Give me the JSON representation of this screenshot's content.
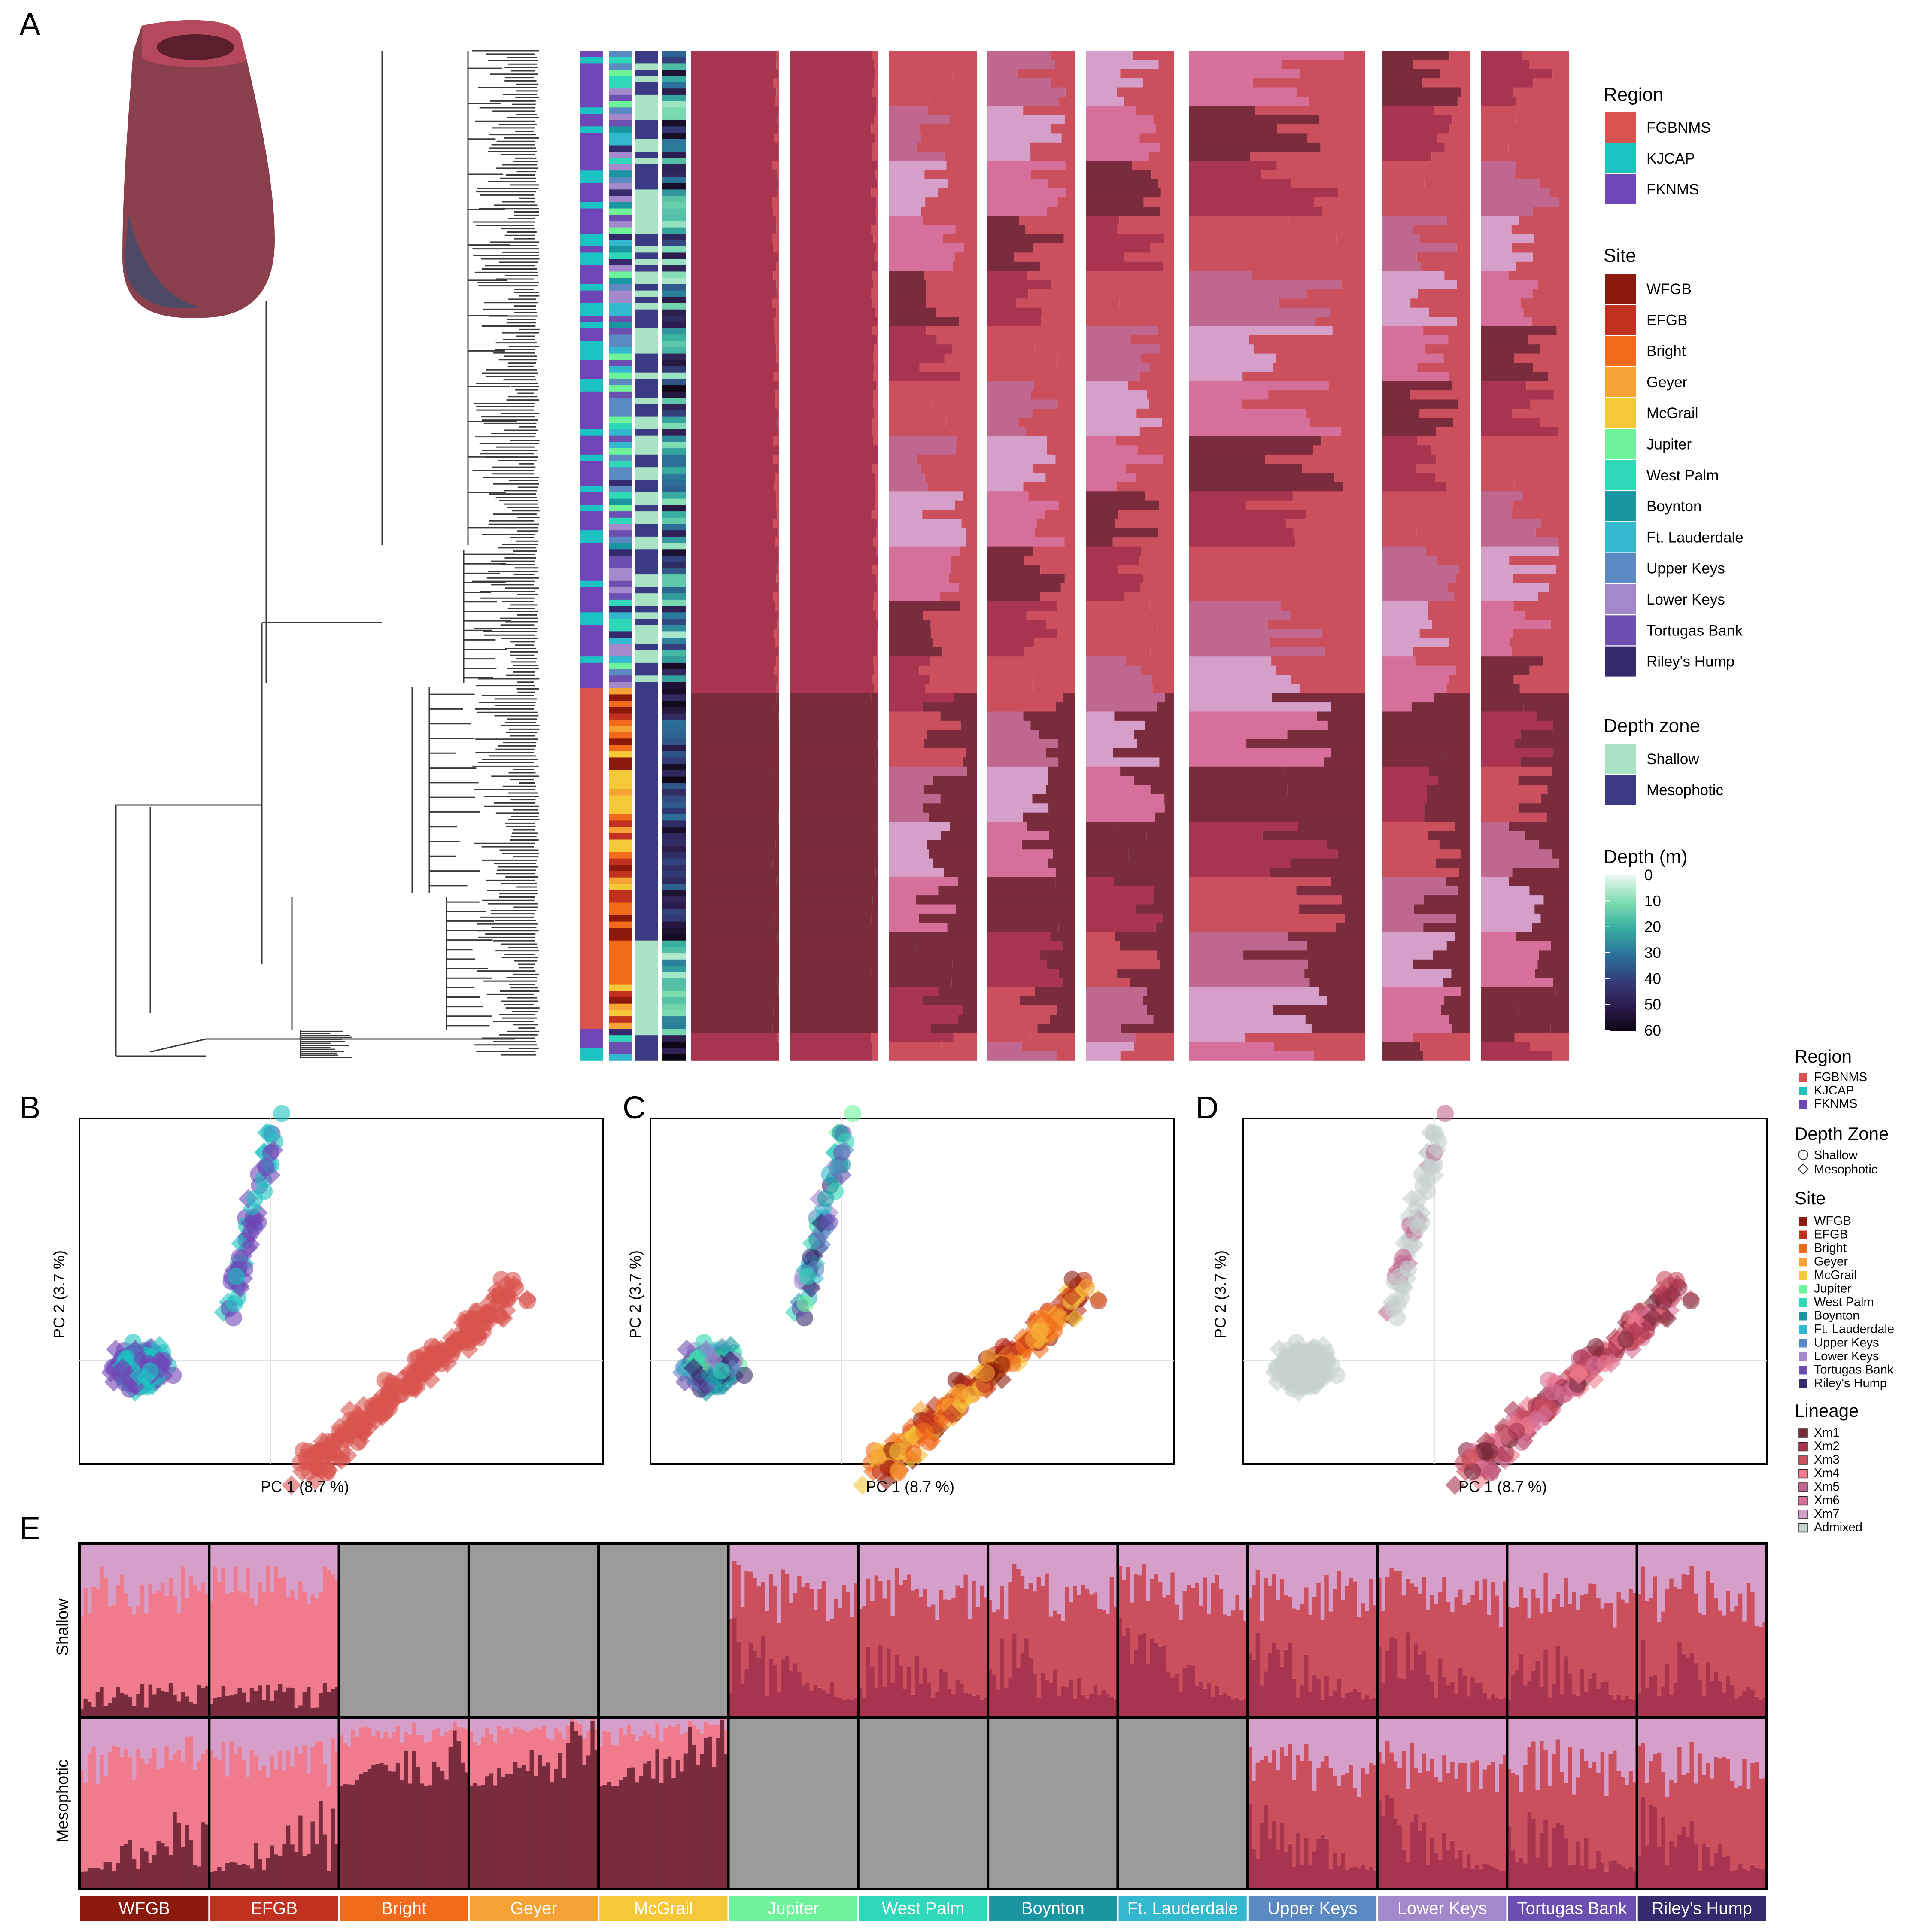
{
  "panels": {
    "A": "A",
    "B": "B",
    "C": "C",
    "D": "D",
    "E": "E"
  },
  "colors": {
    "region": {
      "FGBNMS": "#d9534f",
      "KJCAP": "#1cc3c3",
      "FKNMS": "#6f46b8"
    },
    "site": {
      "WFGB": "#8b1a0c",
      "EFGB": "#c0321f",
      "Bright": "#f26a1b",
      "Geyer": "#f7a234",
      "McGrail": "#f5c83a",
      "Jupiter": "#6ef39a",
      "West Palm": "#2ed8b8",
      "Boynton": "#1a96a3",
      "Ft. Lauderdale": "#33b8cf",
      "Upper Keys": "#5b89c2",
      "Lower Keys": "#a488cc",
      "Tortugas Bank": "#6c4fb0",
      "Riley's Hump": "#362a6e"
    },
    "depth_zone": {
      "Shallow": "#a7e3c4",
      "Mesophotic": "#3d3a85"
    },
    "lineage": {
      "Xm1": "#7a2b3c",
      "Xm2": "#a8344f",
      "Xm3": "#cc4f5e",
      "Xm4": "#f07b8c",
      "Xm5": "#c06790",
      "Xm6": "#d66f9a",
      "Xm7": "#d69fca",
      "Admixed": "#c7d1cf"
    },
    "tree": "#3a3a3a",
    "grey": "#9b9b9b"
  },
  "legend_A": {
    "region": {
      "title": "Region",
      "items": [
        "FGBNMS",
        "KJCAP",
        "FKNMS"
      ]
    },
    "site": {
      "title": "Site",
      "items": [
        "WFGB",
        "EFGB",
        "Bright",
        "Geyer",
        "McGrail",
        "Jupiter",
        "West Palm",
        "Boynton",
        "Ft. Lauderdale",
        "Upper Keys",
        "Lower Keys",
        "Tortugas Bank",
        "Riley's Hump"
      ]
    },
    "depth_zone": {
      "title": "Depth zone",
      "items": [
        "Shallow",
        "Mesophotic"
      ]
    },
    "depth": {
      "title": "Depth (m)",
      "ticks": [
        "0",
        "10",
        "20",
        "30",
        "40",
        "50",
        "60"
      ]
    }
  },
  "legend_right": {
    "region": {
      "title": "Region",
      "items": [
        "FGBNMS",
        "KJCAP",
        "FKNMS"
      ]
    },
    "depth_zone": {
      "title": "Depth Zone",
      "items": [
        "Shallow",
        "Mesophotic"
      ]
    },
    "site": {
      "title": "Site",
      "items": [
        "WFGB",
        "EFGB",
        "Bright",
        "Geyer",
        "McGrail",
        "Jupiter",
        "West Palm",
        "Boynton",
        "Ft. Lauderdale",
        "Upper Keys",
        "Lower Keys",
        "Tortugas Bank",
        "Riley's Hump"
      ]
    },
    "lineage": {
      "title": "Lineage",
      "items": [
        "Xm1",
        "Xm2",
        "Xm3",
        "Xm4",
        "Xm5",
        "Xm6",
        "Xm7",
        "Admixed"
      ]
    }
  },
  "pca": {
    "xlabel": "PC 1 (8.7 %)",
    "ylabel": "PC 2 (3.7 %)"
  },
  "structure_E": {
    "rows": [
      "Shallow",
      "Mesophotic"
    ],
    "sites": [
      "WFGB",
      "EFGB",
      "Bright",
      "Geyer",
      "McGrail",
      "Jupiter",
      "West Palm",
      "Boynton",
      "Ft. Lauderdale",
      "Upper Keys",
      "Lower Keys",
      "Tortugas Bank",
      "Riley's Hump"
    ],
    "missing_shallow": [
      "Bright",
      "Geyer",
      "McGrail"
    ],
    "missing_mesophotic": [
      "Jupiter",
      "West Palm",
      "Boynton",
      "Ft. Lauderdale"
    ]
  },
  "chart_data": [
    {
      "type": "scatter",
      "panel": "B",
      "xlabel": "PC 1 (8.7 %)",
      "ylabel": "PC 2 (3.7 %)",
      "color_by": "region",
      "series": [
        {
          "name": "FGBNMS",
          "cluster_center": [
            0.55,
            -0.12
          ]
        },
        {
          "name": "KJCAP",
          "cluster_center": [
            -0.52,
            -0.02
          ]
        },
        {
          "name": "FKNMS",
          "cluster_center": [
            -0.45,
            0.02
          ]
        }
      ]
    },
    {
      "type": "scatter",
      "panel": "C",
      "xlabel": "PC 1 (8.7 %)",
      "ylabel": "PC 2 (3.7 %)",
      "color_by": "site"
    },
    {
      "type": "scatter",
      "panel": "D",
      "xlabel": "PC 1 (8.7 %)",
      "ylabel": "PC 2 (3.7 %)",
      "color_by": "lineage"
    },
    {
      "type": "bar",
      "panel": "E",
      "subtype": "stacked admixture",
      "rows": [
        "Shallow",
        "Mesophotic"
      ],
      "categories": [
        "WFGB",
        "EFGB",
        "Bright",
        "Geyer",
        "McGrail",
        "Jupiter",
        "West Palm",
        "Boynton",
        "Ft. Lauderdale",
        "Upper Keys",
        "Lower Keys",
        "Tortugas Bank",
        "Riley's Hump"
      ]
    }
  ]
}
